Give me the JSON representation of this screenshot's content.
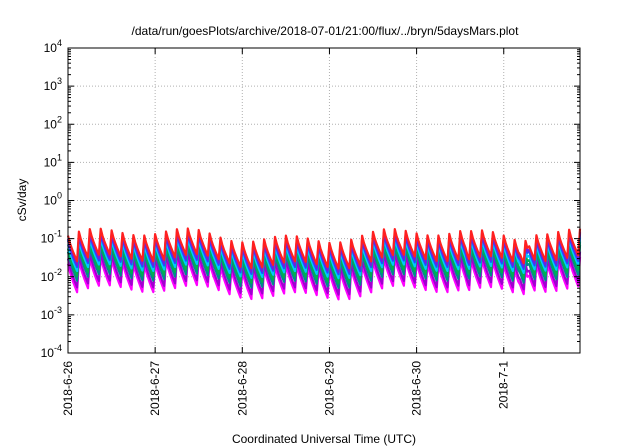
{
  "chart_data": {
    "type": "line",
    "title": "/data/run/goesPlots/archive/2018-07-01/21:00/flux/../bryn/5daysMars.plot",
    "xlabel": "Coordinated Universal Time (UTC)",
    "ylabel": "cSv/day",
    "y_scale": "log",
    "ylim": [
      0.0001,
      10000
    ],
    "y_ticks": [
      {
        "base": "10",
        "exp": "-4"
      },
      {
        "base": "10",
        "exp": "-3"
      },
      {
        "base": "10",
        "exp": "-2"
      },
      {
        "base": "10",
        "exp": "-1"
      },
      {
        "base": "10",
        "exp": "0"
      },
      {
        "base": "10",
        "exp": "1"
      },
      {
        "base": "10",
        "exp": "2"
      },
      {
        "base": "10",
        "exp": "3"
      },
      {
        "base": "10",
        "exp": "4"
      }
    ],
    "xlim": [
      "2018-06-26",
      "2018-07-01 21:00"
    ],
    "x_ticks": [
      "2018-6-26",
      "2018-6-27",
      "2018-6-28",
      "2018-6-29",
      "2018-6-30",
      "2018-7-1"
    ],
    "grid": true,
    "pattern": {
      "sawtooth_period_hours": 3,
      "description": "repeating sawtooth: sharp rise then decay each period"
    },
    "series": [
      {
        "color": "#ff00ff",
        "peak": 0.022,
        "trough": 0.003
      },
      {
        "color": "#a000d0",
        "peak": 0.03,
        "trough": 0.004
      },
      {
        "color": "#008b8b",
        "peak": 0.045,
        "trough": 0.006
      },
      {
        "color": "#00b050",
        "peak": 0.055,
        "trough": 0.008
      },
      {
        "color": "#00c8ff",
        "peak": 0.07,
        "trough": 0.011
      },
      {
        "color": "#1e50ff",
        "peak": 0.09,
        "trough": 0.014
      },
      {
        "color": "#7020e0",
        "peak": 0.1,
        "trough": 0.016
      },
      {
        "color": "#ff2020",
        "peak": 0.12,
        "trough": 0.02
      }
    ]
  }
}
